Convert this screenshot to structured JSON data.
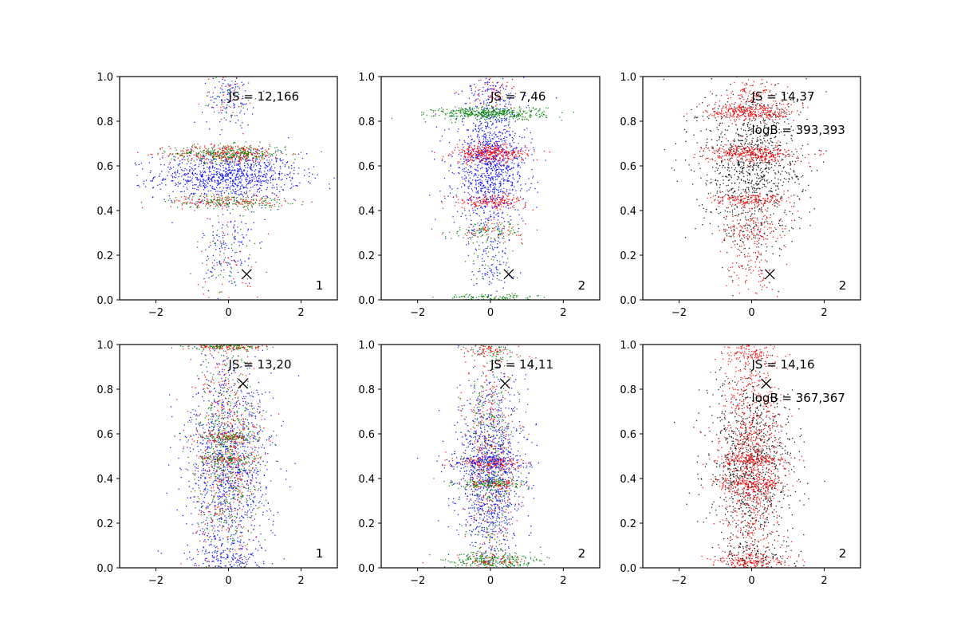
{
  "chart_data": [
    {
      "type": "scatter",
      "xlim": [
        -3,
        3
      ],
      "ylim": [
        0,
        1
      ],
      "xticks": [
        "−2",
        "0",
        "2"
      ],
      "yticks": [
        "0.0",
        "0.2",
        "0.4",
        "0.6",
        "0.8",
        "1.0"
      ],
      "series_colors": [
        "#0000ff",
        "#ff0000",
        "#008000"
      ],
      "clusters": [
        {
          "color": "#0000ff",
          "y": 0.555,
          "sx": 1.0,
          "sy": 0.05,
          "n": 900
        },
        {
          "color": "#ff0000",
          "y": 0.655,
          "sx": 0.8,
          "sy": 0.02,
          "n": 300
        },
        {
          "color": "#008000",
          "y": 0.655,
          "sx": 0.8,
          "sy": 0.02,
          "n": 300
        },
        {
          "color": "#ff0000",
          "y": 0.44,
          "sx": 0.8,
          "sy": 0.015,
          "n": 160
        },
        {
          "color": "#008000",
          "y": 0.44,
          "sx": 0.8,
          "sy": 0.015,
          "n": 160
        },
        {
          "color": "#0000ff",
          "y": 0.22,
          "sx": 0.35,
          "sy": 0.12,
          "n": 140
        },
        {
          "color": "#008000",
          "y": 0.2,
          "sx": 0.45,
          "sy": 0.1,
          "n": 50
        },
        {
          "color": "#ff0000",
          "y": 0.18,
          "sx": 0.45,
          "sy": 0.1,
          "n": 40
        },
        {
          "color": "#0000ff",
          "y": 0.9,
          "sx": 0.35,
          "sy": 0.06,
          "n": 120
        },
        {
          "color": "#ff0000",
          "y": 0.9,
          "sx": 0.35,
          "sy": 0.06,
          "n": 30
        },
        {
          "color": "#008000",
          "y": 0.9,
          "sx": 0.35,
          "sy": 0.06,
          "n": 30
        }
      ],
      "marker": {
        "x": 0.5,
        "y": 0.115
      },
      "annotations": [
        {
          "label": "JS = 12,166"
        }
      ],
      "panel_number": "1"
    },
    {
      "type": "scatter",
      "xlim": [
        -3,
        3
      ],
      "ylim": [
        0,
        1
      ],
      "xticks": [
        "−2",
        "0",
        "2"
      ],
      "yticks": [
        "0.0",
        "0.2",
        "0.4",
        "0.6",
        "0.8",
        "1.0"
      ],
      "series_colors": [
        "#0000ff",
        "#ff0000",
        "#008000"
      ],
      "clusters": [
        {
          "color": "#0000ff",
          "y": 0.6,
          "sx": 0.5,
          "sy": 0.14,
          "n": 1100
        },
        {
          "color": "#008000",
          "y": 0.835,
          "sx": 0.75,
          "sy": 0.015,
          "n": 450
        },
        {
          "color": "#ff0000",
          "y": 0.655,
          "sx": 0.5,
          "sy": 0.02,
          "n": 350
        },
        {
          "color": "#ff0000",
          "y": 0.44,
          "sx": 0.5,
          "sy": 0.015,
          "n": 180
        },
        {
          "color": "#008000",
          "y": 0.31,
          "sx": 0.55,
          "sy": 0.02,
          "n": 100
        },
        {
          "color": "#ff0000",
          "y": 0.31,
          "sx": 0.45,
          "sy": 0.02,
          "n": 50
        },
        {
          "color": "#008000",
          "y": 0.01,
          "sx": 0.6,
          "sy": 0.008,
          "n": 110
        },
        {
          "color": "#0000ff",
          "y": 0.16,
          "sx": 0.3,
          "sy": 0.08,
          "n": 90
        },
        {
          "color": "#008000",
          "y": 0.16,
          "sx": 0.35,
          "sy": 0.08,
          "n": 40
        },
        {
          "color": "#ff0000",
          "y": 0.93,
          "sx": 0.3,
          "sy": 0.04,
          "n": 60
        },
        {
          "color": "#0000ff",
          "y": 0.93,
          "sx": 0.3,
          "sy": 0.04,
          "n": 60
        }
      ],
      "marker": {
        "x": 0.5,
        "y": 0.115
      },
      "annotations": [
        {
          "label": "JS = 7,46"
        }
      ],
      "panel_number": "2"
    },
    {
      "type": "scatter",
      "xlim": [
        -3,
        3
      ],
      "ylim": [
        0,
        1
      ],
      "xticks": [
        "−2",
        "0",
        "2"
      ],
      "yticks": [
        "0.0",
        "0.2",
        "0.4",
        "0.6",
        "0.8",
        "1.0"
      ],
      "series_colors": [
        "#000000",
        "#ff0000"
      ],
      "clusters": [
        {
          "color": "#000000",
          "y": 0.62,
          "sx": 0.75,
          "sy": 0.17,
          "n": 1000
        },
        {
          "color": "#ff0000",
          "y": 0.84,
          "sx": 0.6,
          "sy": 0.02,
          "n": 330
        },
        {
          "color": "#ff0000",
          "y": 0.655,
          "sx": 0.6,
          "sy": 0.02,
          "n": 350
        },
        {
          "color": "#ff0000",
          "y": 0.445,
          "sx": 0.55,
          "sy": 0.015,
          "n": 190
        },
        {
          "color": "#ff0000",
          "y": 0.32,
          "sx": 0.45,
          "sy": 0.04,
          "n": 130
        },
        {
          "color": "#ff0000",
          "y": 0.15,
          "sx": 0.3,
          "sy": 0.08,
          "n": 90
        },
        {
          "color": "#ff0000",
          "y": 0.93,
          "sx": 0.35,
          "sy": 0.04,
          "n": 90
        },
        {
          "color": "#000000",
          "y": 0.3,
          "sx": 0.4,
          "sy": 0.1,
          "n": 80
        }
      ],
      "marker": {
        "x": 0.5,
        "y": 0.115
      },
      "annotations": [
        {
          "label": "JS = 14,37"
        },
        {
          "label": "logB = 393,393"
        }
      ],
      "panel_number": "2"
    },
    {
      "type": "scatter",
      "xlim": [
        -3,
        3
      ],
      "ylim": [
        0,
        1
      ],
      "xticks": [
        "−2",
        "0",
        "2"
      ],
      "yticks": [
        "0.0",
        "0.2",
        "0.4",
        "0.6",
        "0.8",
        "1.0"
      ],
      "series_colors": [
        "#0000ff",
        "#ff0000",
        "#008000"
      ],
      "clusters": [
        {
          "color": "#0000ff",
          "y": 0.45,
          "sx": 0.6,
          "sy": 0.24,
          "n": 1100
        },
        {
          "color": "#ff0000",
          "y": 0.5,
          "sx": 0.45,
          "sy": 0.25,
          "n": 500
        },
        {
          "color": "#008000",
          "y": 0.5,
          "sx": 0.45,
          "sy": 0.25,
          "n": 500
        },
        {
          "color": "#ff0000",
          "y": 0.99,
          "sx": 0.5,
          "sy": 0.008,
          "n": 100
        },
        {
          "color": "#008000",
          "y": 0.99,
          "sx": 0.5,
          "sy": 0.008,
          "n": 100
        },
        {
          "color": "#ff0000",
          "y": 0.585,
          "sx": 0.45,
          "sy": 0.012,
          "n": 80
        },
        {
          "color": "#008000",
          "y": 0.585,
          "sx": 0.45,
          "sy": 0.012,
          "n": 80
        },
        {
          "color": "#ff0000",
          "y": 0.485,
          "sx": 0.45,
          "sy": 0.012,
          "n": 70
        },
        {
          "color": "#008000",
          "y": 0.485,
          "sx": 0.45,
          "sy": 0.012,
          "n": 70
        },
        {
          "color": "#0000ff",
          "y": 0.05,
          "sx": 0.5,
          "sy": 0.04,
          "n": 120
        }
      ],
      "marker": {
        "x": 0.4,
        "y": 0.825
      },
      "annotations": [
        {
          "label": "JS = 13,20"
        }
      ],
      "panel_number": "1"
    },
    {
      "type": "scatter",
      "xlim": [
        -3,
        3
      ],
      "ylim": [
        0,
        1
      ],
      "xticks": [
        "−2",
        "0",
        "2"
      ],
      "yticks": [
        "0.0",
        "0.2",
        "0.4",
        "0.6",
        "0.8",
        "1.0"
      ],
      "series_colors": [
        "#0000ff",
        "#ff0000",
        "#008000"
      ],
      "clusters": [
        {
          "color": "#0000ff",
          "y": 0.42,
          "sx": 0.45,
          "sy": 0.2,
          "n": 1100
        },
        {
          "color": "#ff0000",
          "y": 0.5,
          "sx": 0.35,
          "sy": 0.25,
          "n": 350
        },
        {
          "color": "#008000",
          "y": 0.5,
          "sx": 0.35,
          "sy": 0.25,
          "n": 350
        },
        {
          "color": "#ff0000",
          "y": 0.47,
          "sx": 0.5,
          "sy": 0.012,
          "n": 130
        },
        {
          "color": "#0000ff",
          "y": 0.47,
          "sx": 0.55,
          "sy": 0.015,
          "n": 110
        },
        {
          "color": "#008000",
          "y": 0.375,
          "sx": 0.5,
          "sy": 0.012,
          "n": 140
        },
        {
          "color": "#ff0000",
          "y": 0.375,
          "sx": 0.45,
          "sy": 0.012,
          "n": 70
        },
        {
          "color": "#008000",
          "y": 0.03,
          "sx": 0.65,
          "sy": 0.02,
          "n": 250
        },
        {
          "color": "#ff0000",
          "y": 0.03,
          "sx": 0.5,
          "sy": 0.02,
          "n": 60
        },
        {
          "color": "#ff0000",
          "y": 0.97,
          "sx": 0.4,
          "sy": 0.02,
          "n": 80
        },
        {
          "color": "#008000",
          "y": 0.97,
          "sx": 0.4,
          "sy": 0.02,
          "n": 40
        }
      ],
      "marker": {
        "x": 0.4,
        "y": 0.825
      },
      "annotations": [
        {
          "label": "JS = 14,11"
        }
      ],
      "panel_number": "2"
    },
    {
      "type": "scatter",
      "xlim": [
        -3,
        3
      ],
      "ylim": [
        0,
        1
      ],
      "xticks": [
        "−2",
        "0",
        "2"
      ],
      "yticks": [
        "0.0",
        "0.2",
        "0.4",
        "0.6",
        "0.8",
        "1.0"
      ],
      "series_colors": [
        "#000000",
        "#ff0000"
      ],
      "clusters": [
        {
          "color": "#000000",
          "y": 0.45,
          "sx": 0.6,
          "sy": 0.2,
          "n": 1000
        },
        {
          "color": "#ff0000",
          "y": 0.5,
          "sx": 0.4,
          "sy": 0.27,
          "n": 900
        },
        {
          "color": "#ff0000",
          "y": 0.485,
          "sx": 0.5,
          "sy": 0.015,
          "n": 150
        },
        {
          "color": "#ff0000",
          "y": 0.375,
          "sx": 0.5,
          "sy": 0.015,
          "n": 150
        },
        {
          "color": "#ff0000",
          "y": 0.03,
          "sx": 0.55,
          "sy": 0.02,
          "n": 200
        },
        {
          "color": "#000000",
          "y": 0.05,
          "sx": 0.6,
          "sy": 0.04,
          "n": 100
        },
        {
          "color": "#ff0000",
          "y": 0.96,
          "sx": 0.4,
          "sy": 0.03,
          "n": 100
        }
      ],
      "marker": {
        "x": 0.4,
        "y": 0.825
      },
      "annotations": [
        {
          "label": "JS = 14,16"
        },
        {
          "label": "logB = 367,367"
        }
      ],
      "panel_number": "2"
    }
  ]
}
